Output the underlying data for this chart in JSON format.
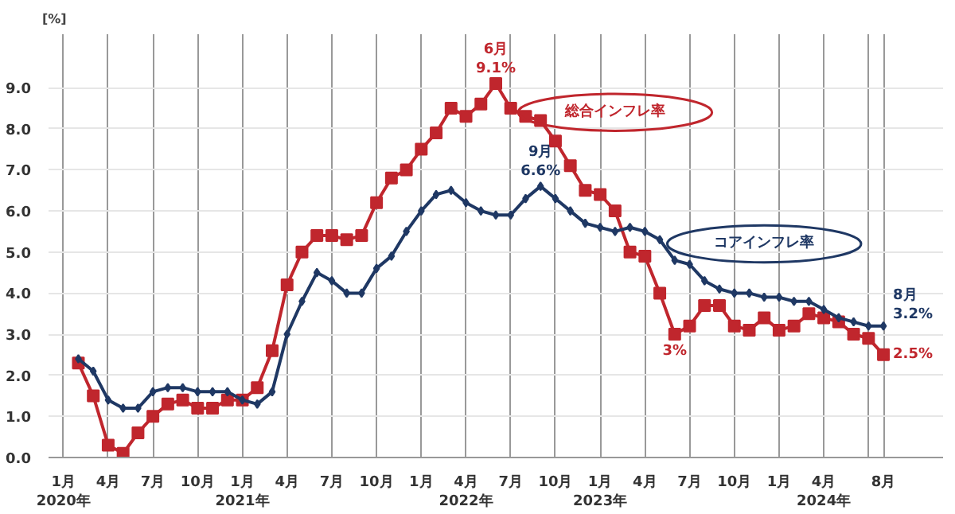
{
  "chart_data": {
    "type": "line",
    "ylabel": "[%]",
    "x": [
      "2020-02",
      "2020-03",
      "2020-04",
      "2020-05",
      "2020-06",
      "2020-07",
      "2020-08",
      "2020-09",
      "2020-10",
      "2020-11",
      "2020-12",
      "2021-01",
      "2021-02",
      "2021-03",
      "2021-04",
      "2021-05",
      "2021-06",
      "2021-07",
      "2021-08",
      "2021-09",
      "2021-10",
      "2021-11",
      "2021-12",
      "2022-01",
      "2022-02",
      "2022-03",
      "2022-04",
      "2022-05",
      "2022-06",
      "2022-07",
      "2022-08",
      "2022-09",
      "2022-10",
      "2022-11",
      "2022-12",
      "2023-01",
      "2023-02",
      "2023-03",
      "2023-04",
      "2023-05",
      "2023-06",
      "2023-07",
      "2023-08",
      "2023-09",
      "2023-10",
      "2023-11",
      "2023-12",
      "2024-01",
      "2024-02",
      "2024-03",
      "2024-04",
      "2024-05",
      "2024-06",
      "2024-07",
      "2024-08"
    ],
    "series": [
      {
        "name": "総合インフレ率",
        "color": "#c0262d",
        "marker": "square",
        "values": [
          2.3,
          1.5,
          0.3,
          0.1,
          0.6,
          1.0,
          1.3,
          1.4,
          1.2,
          1.2,
          1.4,
          1.4,
          1.7,
          2.6,
          4.2,
          5.0,
          5.4,
          5.4,
          5.3,
          5.4,
          6.2,
          6.8,
          7.0,
          7.5,
          7.9,
          8.5,
          8.3,
          8.6,
          9.1,
          8.5,
          8.3,
          8.2,
          7.7,
          7.1,
          6.5,
          6.4,
          6.0,
          5.0,
          4.9,
          4.0,
          3.0,
          3.2,
          3.7,
          3.7,
          3.2,
          3.1,
          3.4,
          3.1,
          3.2,
          3.5,
          3.4,
          3.3,
          3.0,
          2.9,
          2.5
        ]
      },
      {
        "name": "コアインフレ率",
        "color": "#1f3864",
        "marker": "diamond",
        "values": [
          2.4,
          2.1,
          1.4,
          1.2,
          1.2,
          1.6,
          1.7,
          1.7,
          1.6,
          1.6,
          1.6,
          1.4,
          1.3,
          1.6,
          3.0,
          3.8,
          4.5,
          4.3,
          4.0,
          4.0,
          4.6,
          4.9,
          5.5,
          6.0,
          6.4,
          6.5,
          6.2,
          6.0,
          5.9,
          5.9,
          6.3,
          6.6,
          6.3,
          6.0,
          5.7,
          5.6,
          5.5,
          5.6,
          5.5,
          5.3,
          4.8,
          4.7,
          4.3,
          4.1,
          4.0,
          4.0,
          3.9,
          3.9,
          3.8,
          3.8,
          3.6,
          3.4,
          3.3,
          3.2,
          3.2
        ]
      }
    ],
    "xlim": [
      "2019-12",
      "2024-12"
    ],
    "xticks": [
      {
        "value": "2020-01",
        "label": "1月\n2020年"
      },
      {
        "value": "2020-04",
        "label": "4月"
      },
      {
        "value": "2020-07",
        "label": "7月"
      },
      {
        "value": "2020-10",
        "label": "10月"
      },
      {
        "value": "2021-01",
        "label": "1月\n2021年"
      },
      {
        "value": "2021-04",
        "label": "4月"
      },
      {
        "value": "2021-07",
        "label": "7月"
      },
      {
        "value": "2021-10",
        "label": "10月"
      },
      {
        "value": "2022-01",
        "label": "1月"
      },
      {
        "value": "2022-04",
        "label": "4月\n2022年"
      },
      {
        "value": "2022-07",
        "label": "7月"
      },
      {
        "value": "2022-10",
        "label": "10月"
      },
      {
        "value": "2023-01",
        "label": "1月\n2023年"
      },
      {
        "value": "2023-04",
        "label": "4月"
      },
      {
        "value": "2023-07",
        "label": "7月"
      },
      {
        "value": "2023-10",
        "label": "10月"
      },
      {
        "value": "2024-01",
        "label": "1月"
      },
      {
        "value": "2024-04",
        "label": "4月\n2024年"
      },
      {
        "value": "2024-07",
        "label": null
      },
      {
        "value": "2024-08",
        "label": "8月"
      }
    ],
    "ylim": [
      0,
      10.3
    ],
    "yticks": [
      {
        "value": 0,
        "label": "0.0"
      },
      {
        "value": 1,
        "label": "1.0"
      },
      {
        "value": 2,
        "label": "2.0"
      },
      {
        "value": 3,
        "label": "3.0"
      },
      {
        "value": 4,
        "label": "4.0"
      },
      {
        "value": 5,
        "label": "5.0"
      },
      {
        "value": 6,
        "label": "6.0"
      },
      {
        "value": 7,
        "label": "7.0"
      },
      {
        "value": 8,
        "label": "8.0"
      },
      {
        "value": 9,
        "label": "9.0"
      }
    ],
    "grid": true,
    "legend": false,
    "annotations": [
      {
        "text": "6月\n9.1%",
        "x": "2022-06",
        "y": 9.1
      },
      {
        "text": "9月\n6.6%",
        "x": "2022-09",
        "y": 6.6
      },
      {
        "text": "3%",
        "x": "2023-06",
        "y": 3.0
      },
      {
        "text": "8月\n3.2%",
        "x": "2024-08",
        "y": 3.2
      },
      {
        "text": "2.5%",
        "x": "2024-08",
        "y": 2.5
      }
    ]
  }
}
